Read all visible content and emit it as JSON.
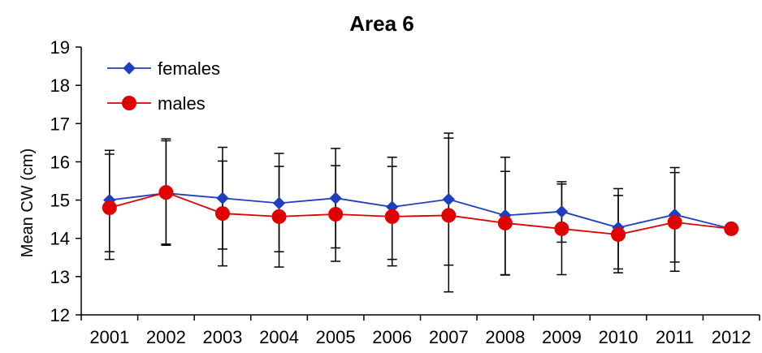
{
  "chart_data": {
    "type": "line",
    "title": "Area 6",
    "xlabel": "",
    "ylabel": "Mean CW (cm)",
    "ylim": [
      12,
      19
    ],
    "yticks": [
      12,
      13,
      14,
      15,
      16,
      17,
      18,
      19
    ],
    "categories": [
      "2001",
      "2002",
      "2003",
      "2004",
      "2005",
      "2006",
      "2007",
      "2008",
      "2009",
      "2010",
      "2011",
      "2012"
    ],
    "grid": false,
    "legend_position": "top-left",
    "series": [
      {
        "name": "females",
        "color": "#1f3fbf",
        "marker": "diamond",
        "values": [
          15.0,
          15.18,
          15.05,
          14.92,
          15.05,
          14.82,
          15.02,
          14.6,
          14.7,
          14.28,
          14.62,
          14.25
        ],
        "error_low": [
          13.65,
          13.85,
          13.72,
          13.65,
          13.75,
          13.45,
          13.3,
          13.05,
          13.9,
          13.2,
          13.38,
          null
        ],
        "error_high": [
          16.3,
          16.6,
          16.38,
          16.22,
          16.35,
          16.12,
          16.75,
          16.12,
          15.48,
          15.3,
          15.85,
          null
        ]
      },
      {
        "name": "males",
        "color": "#e00000",
        "marker": "circle",
        "values": [
          14.8,
          15.2,
          14.65,
          14.57,
          14.63,
          14.57,
          14.6,
          14.4,
          14.25,
          14.1,
          14.42,
          14.25
        ],
        "error_low": [
          13.45,
          13.82,
          13.28,
          13.25,
          13.4,
          13.28,
          12.6,
          13.04,
          13.05,
          13.1,
          13.14,
          null
        ],
        "error_high": [
          16.2,
          16.55,
          16.02,
          15.88,
          15.9,
          15.88,
          16.62,
          15.75,
          15.42,
          15.12,
          15.72,
          null
        ]
      }
    ]
  }
}
